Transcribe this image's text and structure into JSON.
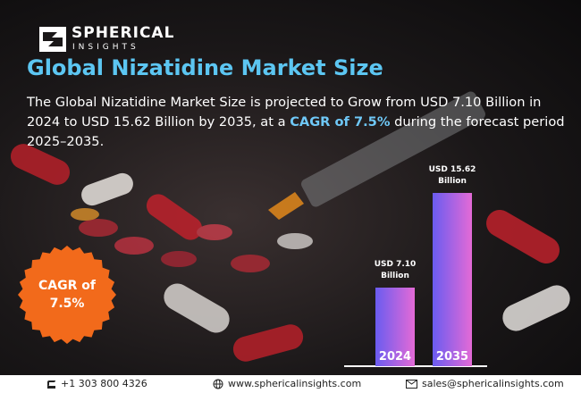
{
  "logo": {
    "name": "SPHERICAL",
    "tagline": "INSIGHTS"
  },
  "title": "Global Nizatidine Market Size",
  "description": {
    "before": "The Global Nizatidine Market Size is projected to Grow from USD 7.10 Billion in 2024 to USD 15.62 Billion by 2035, at a ",
    "highlight": "CAGR of 7.5%",
    "after": " during the forecast period 2025–2035."
  },
  "cagr_badge": "CAGR of 7.5%",
  "chart_data": {
    "type": "bar",
    "categories": [
      "2024",
      "2035"
    ],
    "values": [
      7.1,
      15.62
    ],
    "value_labels": [
      "USD 7.10 Billion",
      "USD 15.62 Billion"
    ],
    "color": [
      "#6a5cf0",
      "#e46ad6"
    ]
  },
  "footer": {
    "phone": "+1 303 800 4326",
    "website": "www.sphericalinsights.com",
    "email": "sales@sphericalinsights.com"
  }
}
